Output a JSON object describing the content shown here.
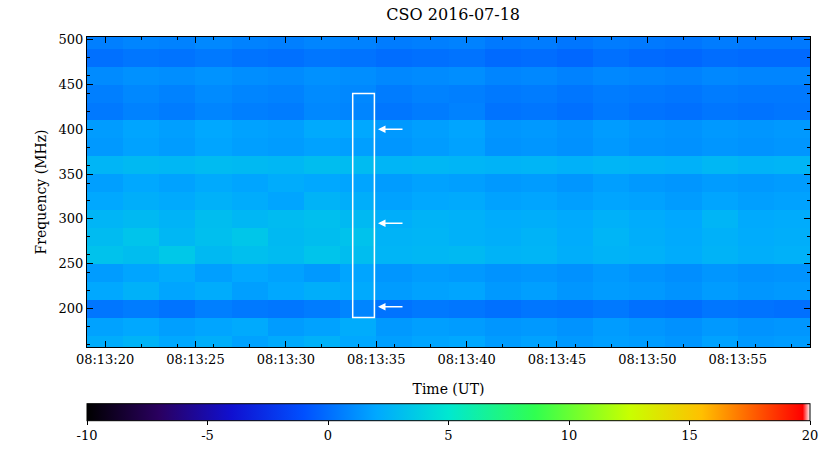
{
  "chart_data": {
    "type": "heatmap",
    "title": "CSO 2016-07-18",
    "x_label": "Time (UT)",
    "y_label": "Frequency (MHz)",
    "xlim": [
      19,
      59
    ],
    "xticks": [
      {
        "value": 20,
        "label": "08:13:20"
      },
      {
        "value": 25,
        "label": "08:13:25"
      },
      {
        "value": 30,
        "label": "08:13:30"
      },
      {
        "value": 35,
        "label": "08:13:35"
      },
      {
        "value": 40,
        "label": "08:13:40"
      },
      {
        "value": 45,
        "label": "08:13:45"
      },
      {
        "value": 50,
        "label": "08:13:50"
      },
      {
        "value": 55,
        "label": "08:13:55"
      }
    ],
    "ylim": [
      157,
      503
    ],
    "yticks": [
      200,
      250,
      300,
      350,
      400,
      450,
      500
    ],
    "x": [
      20,
      22,
      24,
      26,
      28,
      30,
      32,
      34,
      36,
      38,
      40,
      42,
      44,
      46,
      48,
      50,
      52,
      54,
      56,
      58
    ],
    "y": [
      160,
      180,
      200,
      220,
      240,
      260,
      280,
      300,
      320,
      340,
      360,
      380,
      400,
      420,
      440,
      460,
      480,
      500
    ],
    "cells": [
      [
        2.2,
        2.5,
        2.0,
        2.3,
        1.8,
        2.1,
        2.4,
        2.0,
        1.7,
        1.9,
        2.0,
        1.6,
        1.8,
        1.5,
        1.7,
        1.6,
        1.4,
        1.8,
        1.5,
        1.6
      ],
      [
        1.8,
        2.0,
        1.7,
        1.9,
        2.1,
        1.6,
        1.8,
        2.2,
        1.5,
        1.7,
        1.6,
        1.4,
        1.5,
        1.3,
        1.6,
        1.4,
        1.2,
        1.5,
        1.3,
        1.4
      ],
      [
        0.3,
        0.5,
        0.2,
        0.6,
        0.4,
        0.3,
        0.5,
        0.8,
        0.2,
        0.4,
        0.3,
        0.1,
        0.3,
        0.2,
        0.4,
        0.1,
        0.0,
        0.3,
        0.2,
        0.1
      ],
      [
        2.0,
        2.4,
        1.9,
        2.2,
        1.7,
        2.0,
        2.3,
        2.1,
        1.6,
        1.8,
        1.9,
        1.5,
        1.7,
        1.4,
        1.6,
        1.5,
        1.3,
        1.6,
        1.4,
        1.5
      ],
      [
        1.6,
        1.9,
        2.2,
        1.7,
        2.0,
        1.8,
        1.5,
        1.9,
        1.4,
        1.6,
        1.5,
        1.3,
        1.4,
        1.2,
        1.5,
        1.3,
        1.1,
        1.4,
        1.2,
        1.3
      ],
      [
        3.2,
        3.0,
        3.5,
        2.8,
        3.1,
        2.9,
        3.3,
        3.0,
        2.6,
        2.7,
        2.8,
        2.5,
        2.6,
        2.3,
        2.5,
        2.4,
        2.2,
        2.5,
        2.3,
        2.4
      ],
      [
        2.9,
        3.3,
        2.7,
        3.1,
        3.4,
        2.8,
        3.0,
        3.2,
        2.5,
        2.6,
        2.4,
        2.3,
        2.5,
        2.2,
        2.6,
        2.3,
        2.1,
        2.4,
        2.2,
        2.3
      ],
      [
        2.6,
        2.8,
        2.5,
        3.0,
        2.7,
        2.9,
        3.1,
        2.8,
        2.3,
        2.5,
        2.4,
        2.2,
        2.3,
        2.1,
        2.4,
        2.2,
        2.0,
        2.6,
        2.1,
        2.2
      ],
      [
        2.0,
        2.3,
        2.1,
        2.4,
        2.2,
        1.9,
        2.5,
        2.3,
        1.8,
        2.0,
        2.1,
        1.8,
        1.9,
        1.7,
        1.9,
        1.8,
        1.6,
        1.9,
        1.7,
        1.8
      ],
      [
        1.7,
        2.0,
        1.8,
        2.1,
        1.9,
        2.2,
        2.0,
        1.9,
        1.6,
        1.8,
        1.7,
        1.5,
        1.6,
        1.4,
        1.7,
        1.5,
        1.4,
        1.6,
        1.5,
        1.6
      ],
      [
        2.6,
        2.8,
        2.7,
        2.9,
        2.8,
        2.7,
        3.0,
        2.9,
        2.6,
        2.7,
        2.6,
        2.5,
        2.6,
        2.4,
        2.6,
        2.5,
        2.4,
        2.7,
        2.5,
        2.6
      ],
      [
        1.5,
        1.8,
        1.6,
        1.9,
        1.7,
        1.6,
        1.8,
        1.7,
        1.4,
        1.6,
        1.8,
        1.3,
        1.4,
        1.2,
        1.5,
        1.3,
        1.2,
        1.4,
        1.3,
        1.4
      ],
      [
        1.6,
        1.9,
        1.7,
        2.0,
        1.8,
        1.7,
        2.1,
        2.0,
        1.5,
        1.7,
        1.9,
        1.4,
        1.5,
        1.3,
        1.6,
        1.4,
        1.3,
        1.5,
        1.4,
        1.5
      ],
      [
        0.4,
        0.7,
        0.5,
        0.8,
        0.6,
        0.5,
        0.9,
        0.8,
        0.3,
        0.5,
        0.7,
        0.2,
        0.3,
        0.1,
        0.4,
        0.2,
        0.1,
        0.3,
        0.2,
        0.3
      ],
      [
        0.6,
        0.9,
        0.7,
        1.0,
        0.8,
        0.7,
        1.0,
        0.9,
        0.5,
        0.7,
        0.6,
        0.4,
        0.5,
        0.3,
        0.5,
        0.4,
        0.3,
        0.5,
        0.4,
        0.4
      ],
      [
        1.0,
        1.2,
        1.1,
        1.3,
        1.1,
        1.0,
        1.2,
        1.1,
        0.9,
        1.0,
        1.1,
        0.8,
        0.9,
        0.7,
        0.9,
        0.8,
        0.7,
        0.9,
        0.8,
        0.8
      ],
      [
        0.1,
        0.3,
        0.2,
        0.4,
        0.2,
        0.1,
        0.3,
        0.2,
        0.0,
        0.1,
        0.2,
        -0.1,
        0.0,
        -0.2,
        0.1,
        -0.1,
        -0.2,
        0.0,
        -0.1,
        -0.1
      ],
      [
        0.6,
        0.8,
        0.7,
        0.9,
        0.7,
        0.6,
        0.8,
        0.7,
        0.5,
        0.6,
        0.7,
        0.4,
        0.5,
        0.3,
        0.5,
        0.4,
        0.3,
        0.5,
        0.4,
        0.4
      ]
    ],
    "colorbar": {
      "zlim": [
        -10,
        20
      ],
      "ticks": [
        -10,
        -5,
        0,
        5,
        10,
        15,
        20
      ]
    },
    "box": {
      "xlim": [
        33.7,
        34.9
      ],
      "ylim": [
        190,
        440
      ]
    },
    "arrows": [
      {
        "x": 35.1,
        "y": 400
      },
      {
        "x": 35.1,
        "y": 295
      },
      {
        "x": 35.1,
        "y": 202
      }
    ]
  }
}
